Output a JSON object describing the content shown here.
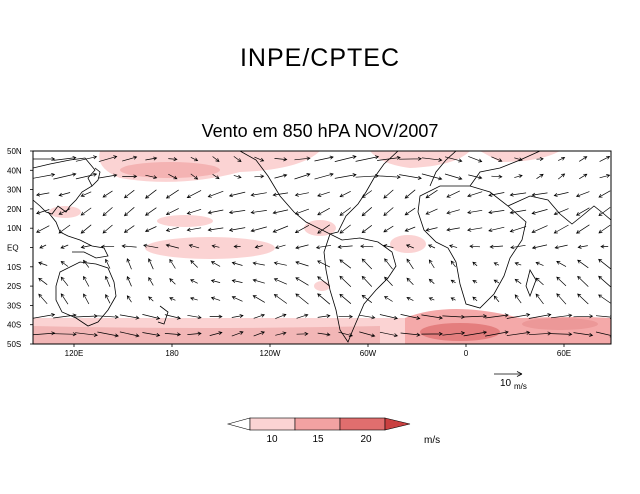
{
  "header": {
    "organization": "INPE/CPTEC",
    "map_title": "Vento em 850 hPA NOV/2007"
  },
  "map": {
    "lat_labels": [
      "50N",
      "40N",
      "30N",
      "20N",
      "10N",
      "EQ",
      "10S",
      "20S",
      "30S",
      "40S",
      "50S"
    ],
    "lon_labels": [
      "120E",
      "180",
      "120W",
      "60W",
      "0",
      "60E"
    ],
    "reference_vector": {
      "label": "10",
      "unit": "m/s",
      "magnitude": 10
    }
  },
  "legend": {
    "thresholds": [
      "10",
      "15",
      "20"
    ],
    "unit": "m/s",
    "colors": [
      "#ffffff",
      "#fbd3d3",
      "#f2a2a2",
      "#e06e6e",
      "#c94040"
    ]
  }
}
